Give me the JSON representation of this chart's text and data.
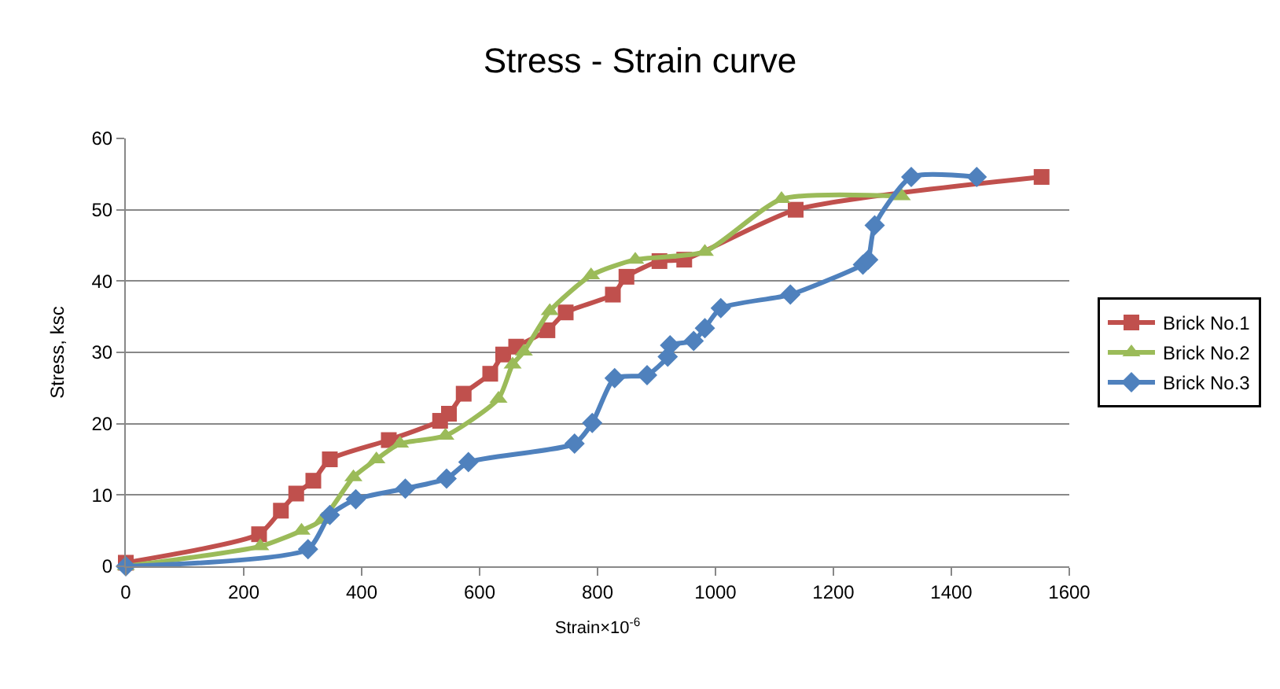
{
  "chart_data": {
    "type": "line",
    "title": "Stress - Strain curve",
    "xlabel": "Strain×10$^{-6}$",
    "ylabel": "Stress, ksc",
    "xlim": [
      0,
      1600
    ],
    "xticks": [
      0,
      200,
      400,
      600,
      800,
      1000,
      1200,
      1400,
      1600
    ],
    "ylim": [
      0,
      60
    ],
    "yticks": [
      0,
      10,
      20,
      30,
      40,
      50,
      60
    ],
    "grid": "y",
    "legend": "right",
    "series": [
      {
        "name": "Brick No.1",
        "color": "#c0504d",
        "marker": "square",
        "x": [
          0,
          226,
          263,
          289,
          318,
          346,
          446,
          533,
          548,
          573,
          618,
          640,
          662,
          715,
          746,
          826,
          849,
          905,
          947,
          1136,
          1553
        ],
        "values": [
          0.5,
          4.5,
          7.8,
          10.2,
          12,
          15,
          17.7,
          20.4,
          21.4,
          24.2,
          27,
          29.7,
          30.8,
          33.1,
          35.6,
          38.1,
          40.6,
          42.8,
          43,
          50,
          54.6
        ]
      },
      {
        "name": "Brick No.2",
        "color": "#9bbb59",
        "marker": "triangle",
        "x": [
          0,
          228,
          298,
          333,
          386,
          425,
          465,
          542,
          632,
          656,
          675,
          719,
          789,
          864,
          982,
          1112,
          1316
        ],
        "values": [
          0,
          2.8,
          5,
          6.5,
          12.5,
          15,
          17.2,
          18.3,
          23.5,
          28.3,
          30.1,
          35.8,
          40.8,
          43,
          44.1,
          51.5,
          51.9
        ]
      },
      {
        "name": "Brick No.3",
        "color": "#4f81bd",
        "marker": "diamond",
        "x": [
          0,
          309,
          346,
          390,
          474,
          544,
          581,
          761,
          791,
          829,
          884,
          919,
          923,
          963,
          982,
          1009,
          1127,
          1250,
          1259,
          1270,
          1332,
          1443
        ],
        "values": [
          0,
          2.4,
          7.2,
          9.4,
          10.9,
          12.3,
          14.6,
          17.2,
          20.1,
          26.4,
          26.8,
          29.4,
          31,
          31.6,
          33.4,
          36.2,
          38.1,
          42.3,
          43,
          47.8,
          54.6,
          54.6
        ]
      }
    ]
  }
}
